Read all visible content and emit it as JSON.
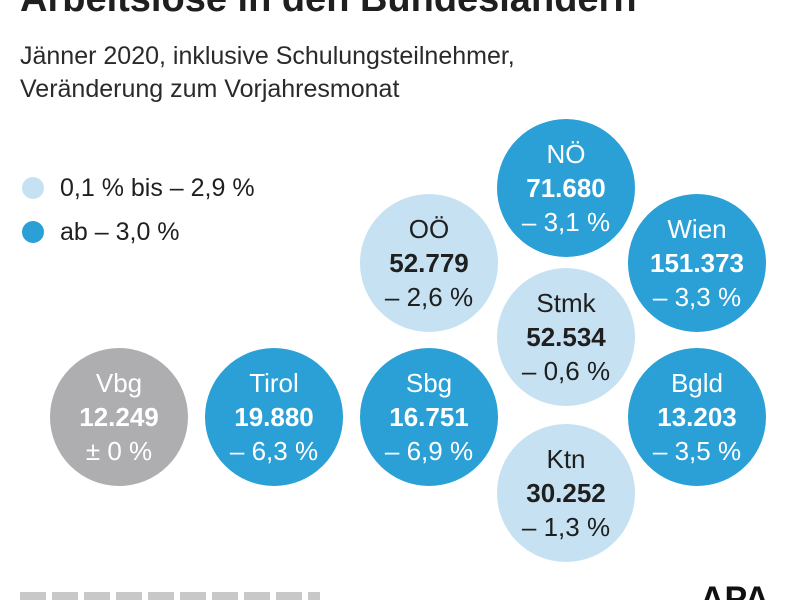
{
  "title": "Arbeitslose in den Bundesländern",
  "subtitle": [
    "Jänner 2020, inklusive Schulungsteilnehmer,",
    "Veränderung zum Vorjahresmonat"
  ],
  "colors": {
    "dark": "#2aa0d6",
    "light": "#c6e1f2",
    "gray": "#aeaeb1"
  },
  "legend": [
    {
      "label": "0,1 % bis – 2,9 %",
      "color": "#c6e1f2"
    },
    {
      "label": "ab – 3,0 %",
      "color": "#2aa0d6"
    }
  ],
  "logo": "APA",
  "chart_data": {
    "type": "bubble",
    "title": "Arbeitslose in den Bundesländern",
    "subtitle": "Jänner 2020, inklusive Schulungsteilnehmer, Veränderung zum Vorjahresmonat",
    "categories": [
      "NÖ",
      "Wien",
      "OÖ",
      "Stmk",
      "Vbg",
      "Tirol",
      "Sbg",
      "Bgld",
      "Ktn"
    ],
    "values": [
      71680,
      151373,
      52779,
      52534,
      12249,
      19880,
      16751,
      13203,
      30252
    ],
    "change_percent": [
      -3.1,
      -3.3,
      -2.6,
      -0.6,
      0,
      -6.3,
      -6.9,
      -3.5,
      -1.3
    ],
    "bubbles": [
      {
        "name": "NÖ",
        "value_label": "71.680",
        "change_label": "– 3,1 %",
        "class": "dark"
      },
      {
        "name": "Wien",
        "value_label": "151.373",
        "change_label": "– 3,3 %",
        "class": "dark"
      },
      {
        "name": "OÖ",
        "value_label": "52.779",
        "change_label": "– 2,6 %",
        "class": "light"
      },
      {
        "name": "Stmk",
        "value_label": "52.534",
        "change_label": "– 0,6 %",
        "class": "light"
      },
      {
        "name": "Vbg",
        "value_label": "12.249",
        "change_label": "± 0 %",
        "class": "gray"
      },
      {
        "name": "Tirol",
        "value_label": "19.880",
        "change_label": "– 6,3 %",
        "class": "dark"
      },
      {
        "name": "Sbg",
        "value_label": "16.751",
        "change_label": "– 6,9 %",
        "class": "dark"
      },
      {
        "name": "Bgld",
        "value_label": "13.203",
        "change_label": "– 3,5 %",
        "class": "dark"
      },
      {
        "name": "Ktn",
        "value_label": "30.252",
        "change_label": "– 1,3 %",
        "class": "light"
      }
    ]
  }
}
